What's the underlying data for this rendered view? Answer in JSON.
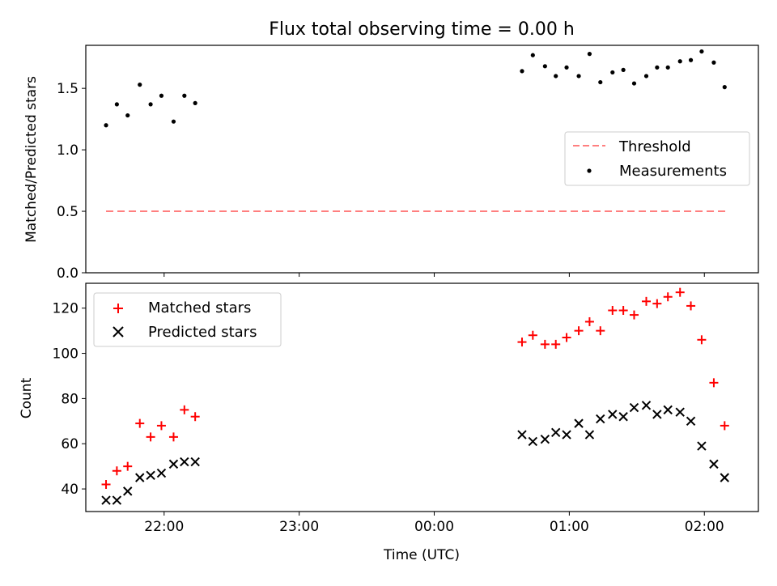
{
  "title": "Flux total observing time = 0.00 h",
  "x_axis": {
    "label": "Time (UTC)",
    "ticks": [
      {
        "label": "22:00",
        "value": 22.0
      },
      {
        "label": "23:00",
        "value": 23.0
      },
      {
        "label": "00:00",
        "value": 24.0
      },
      {
        "label": "01:00",
        "value": 25.0
      },
      {
        "label": "02:00",
        "value": 26.0
      }
    ]
  },
  "colors": {
    "threshold": "#ff7f7f",
    "measurements": "#000000",
    "matched": "#ff0000",
    "predicted": "#000000"
  },
  "chart_data": [
    {
      "type": "scatter",
      "ylabel": "Matched/Predicted stars",
      "ylim": [
        0.0,
        1.85
      ],
      "yticks": [
        "0.0",
        "0.5",
        "1.0",
        "1.5"
      ],
      "xlim": [
        21.42,
        26.4
      ],
      "legend": {
        "placement": "center-right",
        "entries": [
          "Threshold",
          "Measurements"
        ]
      },
      "series": [
        {
          "name": "Threshold",
          "style": "dashed-line",
          "x": [
            21.57,
            26.17
          ],
          "y": [
            0.5,
            0.5
          ]
        },
        {
          "name": "Measurements",
          "style": "dot",
          "x": [
            21.57,
            21.65,
            21.73,
            21.82,
            21.9,
            21.98,
            22.07,
            22.15,
            22.23,
            24.65,
            24.73,
            24.82,
            24.9,
            24.98,
            25.07,
            25.15,
            25.23,
            25.32,
            25.4,
            25.48,
            25.57,
            25.65,
            25.73,
            25.82,
            25.9,
            25.98,
            26.07,
            26.15
          ],
          "y": [
            1.2,
            1.37,
            1.28,
            1.53,
            1.37,
            1.44,
            1.23,
            1.44,
            1.38,
            1.64,
            1.77,
            1.68,
            1.6,
            1.67,
            1.6,
            1.78,
            1.55,
            1.63,
            1.65,
            1.54,
            1.6,
            1.67,
            1.67,
            1.72,
            1.73,
            1.8,
            1.71,
            1.51
          ]
        }
      ]
    },
    {
      "type": "scatter",
      "ylabel": "Count",
      "ylim": [
        30,
        131
      ],
      "yticks": [
        "40",
        "60",
        "80",
        "100",
        "120"
      ],
      "xlim": [
        21.42,
        26.4
      ],
      "legend": {
        "placement": "top-left",
        "entries": [
          "Matched stars",
          "Predicted stars"
        ]
      },
      "series": [
        {
          "name": "Matched stars",
          "marker": "plus",
          "x": [
            21.57,
            21.65,
            21.73,
            21.82,
            21.9,
            21.98,
            22.07,
            22.15,
            22.23,
            24.65,
            24.73,
            24.82,
            24.9,
            24.98,
            25.07,
            25.15,
            25.23,
            25.32,
            25.4,
            25.48,
            25.57,
            25.65,
            25.73,
            25.82,
            25.9,
            25.98,
            26.07,
            26.15
          ],
          "y": [
            42,
            48,
            50,
            69,
            63,
            68,
            63,
            75,
            72,
            105,
            108,
            104,
            104,
            107,
            110,
            114,
            110,
            119,
            119,
            117,
            123,
            122,
            125,
            127,
            121,
            106,
            87,
            68
          ]
        },
        {
          "name": "Predicted stars",
          "marker": "x",
          "x": [
            21.57,
            21.65,
            21.73,
            21.82,
            21.9,
            21.98,
            22.07,
            22.15,
            22.23,
            24.65,
            24.73,
            24.82,
            24.9,
            24.98,
            25.07,
            25.15,
            25.23,
            25.32,
            25.4,
            25.48,
            25.57,
            25.65,
            25.73,
            25.82,
            25.9,
            25.98,
            26.07,
            26.15
          ],
          "y": [
            35,
            35,
            39,
            45,
            46,
            47,
            51,
            52,
            52,
            64,
            61,
            62,
            65,
            64,
            69,
            64,
            71,
            73,
            72,
            76,
            77,
            73,
            75,
            74,
            70,
            59,
            51,
            45
          ]
        }
      ]
    }
  ]
}
